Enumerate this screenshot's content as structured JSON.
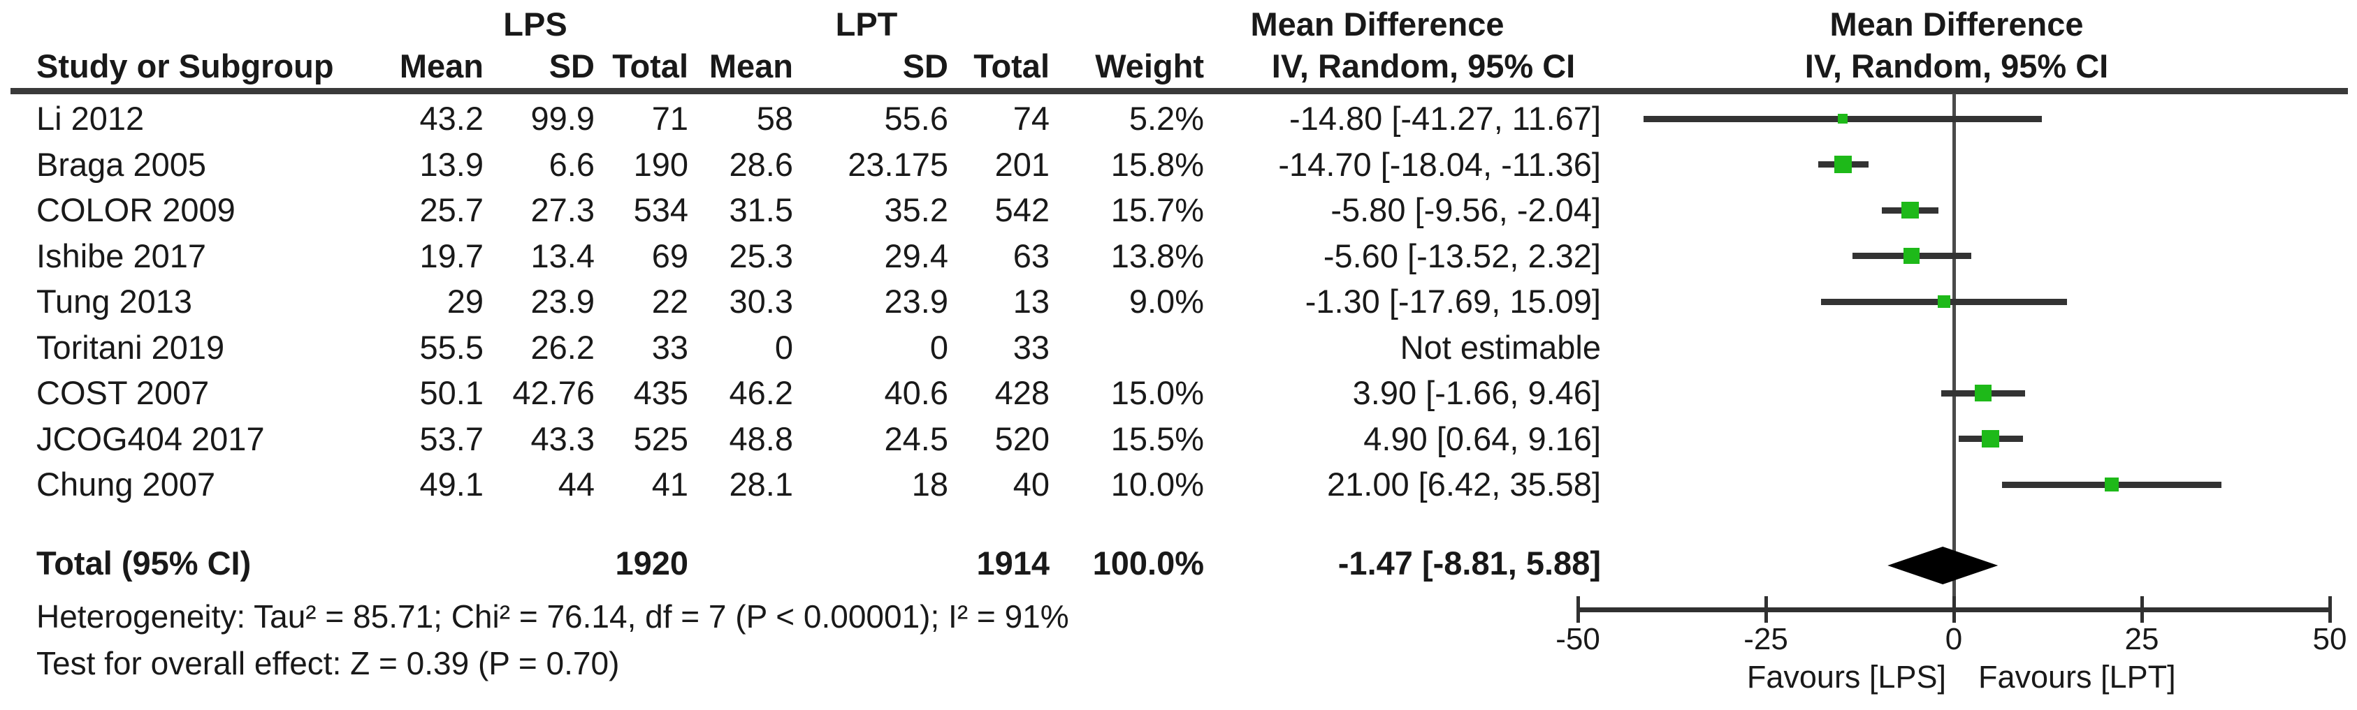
{
  "colors": {
    "square_green": "#1eb919",
    "diamond_black": "#000000",
    "ci_line_gray": "#333333",
    "axis_gray": "#303030"
  },
  "header": {
    "group1": "LPS",
    "group2": "LPT",
    "col_study": "Study or Subgroup",
    "col_mean": "Mean",
    "col_sd": "SD",
    "col_total": "Total",
    "col_weight": "Weight",
    "effect_title": "Mean Difference",
    "effect_subtitle": "IV, Random, 95% CI",
    "plot_title": "Mean Difference",
    "plot_subtitle": "IV, Random, 95% CI"
  },
  "rows": [
    {
      "study": "Li 2012",
      "lps_mean": "43.2",
      "lps_sd": "99.9",
      "lps_total": "71",
      "lpt_mean": "58",
      "lpt_sd": "55.6",
      "lpt_total": "74",
      "weight": "5.2%",
      "ci_text": "-14.80 [-41.27, 11.67]"
    },
    {
      "study": "Braga 2005",
      "lps_mean": "13.9",
      "lps_sd": "6.6",
      "lps_total": "190",
      "lpt_mean": "28.6",
      "lpt_sd": "23.175",
      "lpt_total": "201",
      "weight": "15.8%",
      "ci_text": "-14.70 [-18.04, -11.36]"
    },
    {
      "study": "COLOR 2009",
      "lps_mean": "25.7",
      "lps_sd": "27.3",
      "lps_total": "534",
      "lpt_mean": "31.5",
      "lpt_sd": "35.2",
      "lpt_total": "542",
      "weight": "15.7%",
      "ci_text": "-5.80 [-9.56, -2.04]"
    },
    {
      "study": "Ishibe 2017",
      "lps_mean": "19.7",
      "lps_sd": "13.4",
      "lps_total": "69",
      "lpt_mean": "25.3",
      "lpt_sd": "29.4",
      "lpt_total": "63",
      "weight": "13.8%",
      "ci_text": "-5.60 [-13.52, 2.32]"
    },
    {
      "study": "Tung 2013",
      "lps_mean": "29",
      "lps_sd": "23.9",
      "lps_total": "22",
      "lpt_mean": "30.3",
      "lpt_sd": "23.9",
      "lpt_total": "13",
      "weight": "9.0%",
      "ci_text": "-1.30 [-17.69, 15.09]"
    },
    {
      "study": "Toritani 2019",
      "lps_mean": "55.5",
      "lps_sd": "26.2",
      "lps_total": "33",
      "lpt_mean": "0",
      "lpt_sd": "0",
      "lpt_total": "33",
      "weight": "",
      "ci_text": "Not estimable"
    },
    {
      "study": "COST 2007",
      "lps_mean": "50.1",
      "lps_sd": "42.76",
      "lps_total": "435",
      "lpt_mean": "46.2",
      "lpt_sd": "40.6",
      "lpt_total": "428",
      "weight": "15.0%",
      "ci_text": "3.90 [-1.66, 9.46]"
    },
    {
      "study": "JCOG404 2017",
      "lps_mean": "53.7",
      "lps_sd": "43.3",
      "lps_total": "525",
      "lpt_mean": "48.8",
      "lpt_sd": "24.5",
      "lpt_total": "520",
      "weight": "15.5%",
      "ci_text": "4.90 [0.64, 9.16]"
    },
    {
      "study": "Chung 2007",
      "lps_mean": "49.1",
      "lps_sd": "44",
      "lps_total": "41",
      "lpt_mean": "28.1",
      "lpt_sd": "18",
      "lpt_total": "40",
      "weight": "10.0%",
      "ci_text": "21.00 [6.42, 35.58]"
    }
  ],
  "total_row": {
    "label": "Total (95% CI)",
    "lps_total": "1920",
    "lpt_total": "1914",
    "weight": "100.0%",
    "ci_text": "-1.47 [-8.81, 5.88]"
  },
  "footnotes": {
    "heterogeneity": "Heterogeneity: Tau² = 85.71; Chi² = 76.14, df = 7 (P < 0.00001); I² = 91%",
    "overall": "Test for overall effect: Z = 0.39 (P = 0.70)"
  },
  "chart_data": {
    "type": "forest",
    "title": "Mean Difference",
    "effect_measure": "IV, Random, 95% CI",
    "xlim": [
      -50,
      50
    ],
    "xticks": [
      -50,
      -25,
      0,
      25,
      50
    ],
    "favours_left": "Favours [LPS]",
    "favours_right": "Favours [LPT]",
    "studies": [
      {
        "name": "Li 2012",
        "est": -14.8,
        "lo": -41.27,
        "hi": 11.67,
        "weight_pct": 5.2
      },
      {
        "name": "Braga 2005",
        "est": -14.7,
        "lo": -18.04,
        "hi": -11.36,
        "weight_pct": 15.8
      },
      {
        "name": "COLOR 2009",
        "est": -5.8,
        "lo": -9.56,
        "hi": -2.04,
        "weight_pct": 15.7
      },
      {
        "name": "Ishibe 2017",
        "est": -5.6,
        "lo": -13.52,
        "hi": 2.32,
        "weight_pct": 13.8
      },
      {
        "name": "Tung 2013",
        "est": -1.3,
        "lo": -17.69,
        "hi": 15.09,
        "weight_pct": 9.0
      },
      {
        "name": "Toritani 2019",
        "est": null,
        "lo": null,
        "hi": null,
        "weight_pct": null
      },
      {
        "name": "COST 2007",
        "est": 3.9,
        "lo": -1.66,
        "hi": 9.46,
        "weight_pct": 15.0
      },
      {
        "name": "JCOG404 2017",
        "est": 4.9,
        "lo": 0.64,
        "hi": 9.16,
        "weight_pct": 15.5
      },
      {
        "name": "Chung 2007",
        "est": 21.0,
        "lo": 6.42,
        "hi": 35.58,
        "weight_pct": 10.0
      }
    ],
    "total": {
      "est": -1.47,
      "lo": -8.81,
      "hi": 5.88,
      "lps_total": 1920,
      "lpt_total": 1914,
      "weight_pct": 100.0
    },
    "heterogeneity": {
      "tau2": 85.71,
      "chi2": 76.14,
      "df": 7,
      "p": "< 0.00001",
      "i2_pct": 91
    },
    "overall_effect": {
      "z": 0.39,
      "p": 0.7
    }
  }
}
